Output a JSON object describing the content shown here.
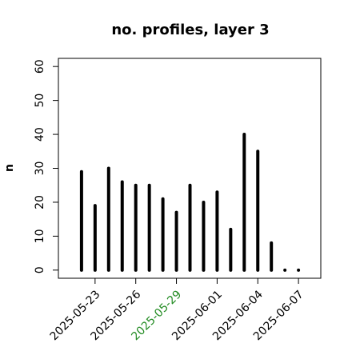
{
  "chart_data": {
    "type": "spike",
    "title": "no. profiles, layer 3",
    "y_label": "n",
    "x": [
      "2025-05-22",
      "2025-05-23",
      "2025-05-24",
      "2025-05-25",
      "2025-05-26",
      "2025-05-27",
      "2025-05-28",
      "2025-05-29",
      "2025-05-30",
      "2025-05-31",
      "2025-06-01",
      "2025-06-02",
      "2025-06-03",
      "2025-06-04",
      "2025-06-05",
      "2025-06-06",
      "2025-06-07"
    ],
    "values": [
      29,
      19,
      30,
      26,
      25,
      25,
      21,
      17,
      25,
      20,
      23,
      12,
      40,
      35,
      8,
      0,
      0
    ],
    "color": "#000000",
    "xlim": [
      "2025-05-20",
      "2025-06-09"
    ],
    "xticks": [
      "2025-05-23",
      "2025-05-26",
      "2025-05-29",
      "2025-06-01",
      "2025-06-04",
      "2025-06-07"
    ],
    "xtick_colors": [
      "#000000",
      "#000000",
      "#228b22",
      "#000000",
      "#000000",
      "#000000"
    ],
    "ylim": [
      -2.4,
      62.4
    ],
    "yticks": [
      0,
      10,
      20,
      30,
      40,
      50,
      60
    ]
  }
}
